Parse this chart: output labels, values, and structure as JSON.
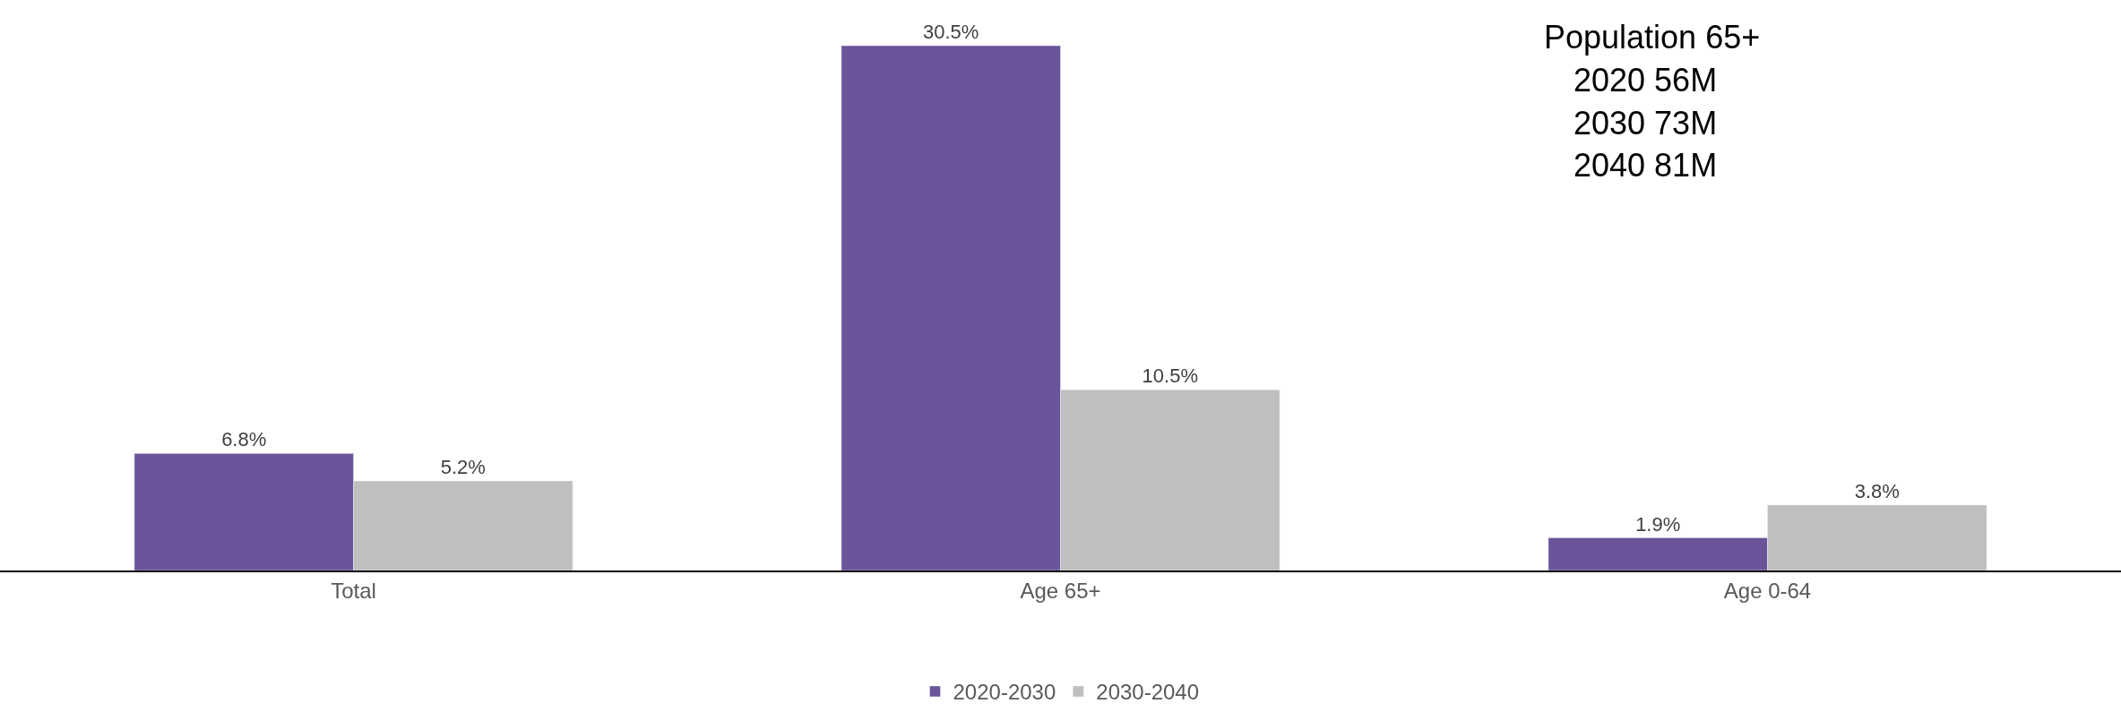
{
  "chart_data": {
    "type": "bar",
    "categories": [
      "Total",
      "Age 65+",
      "Age 0-64"
    ],
    "series": [
      {
        "name": "2020-2030",
        "color": "#6b5499",
        "values": [
          6.8,
          30.5,
          1.9
        ],
        "value_labels": [
          "6.8%",
          "30.5%",
          "1.9%"
        ]
      },
      {
        "name": "2030-2040",
        "color": "#bfbfbf",
        "values": [
          5.2,
          10.5,
          3.8
        ],
        "value_labels": [
          "5.2%",
          "10.5%",
          "3.8%"
        ]
      }
    ],
    "annotations": [
      "Population 65+",
      "2020 56M",
      "2030 73M",
      "2040 81M"
    ],
    "legend": "bottom",
    "tick_labels": "x"
  }
}
